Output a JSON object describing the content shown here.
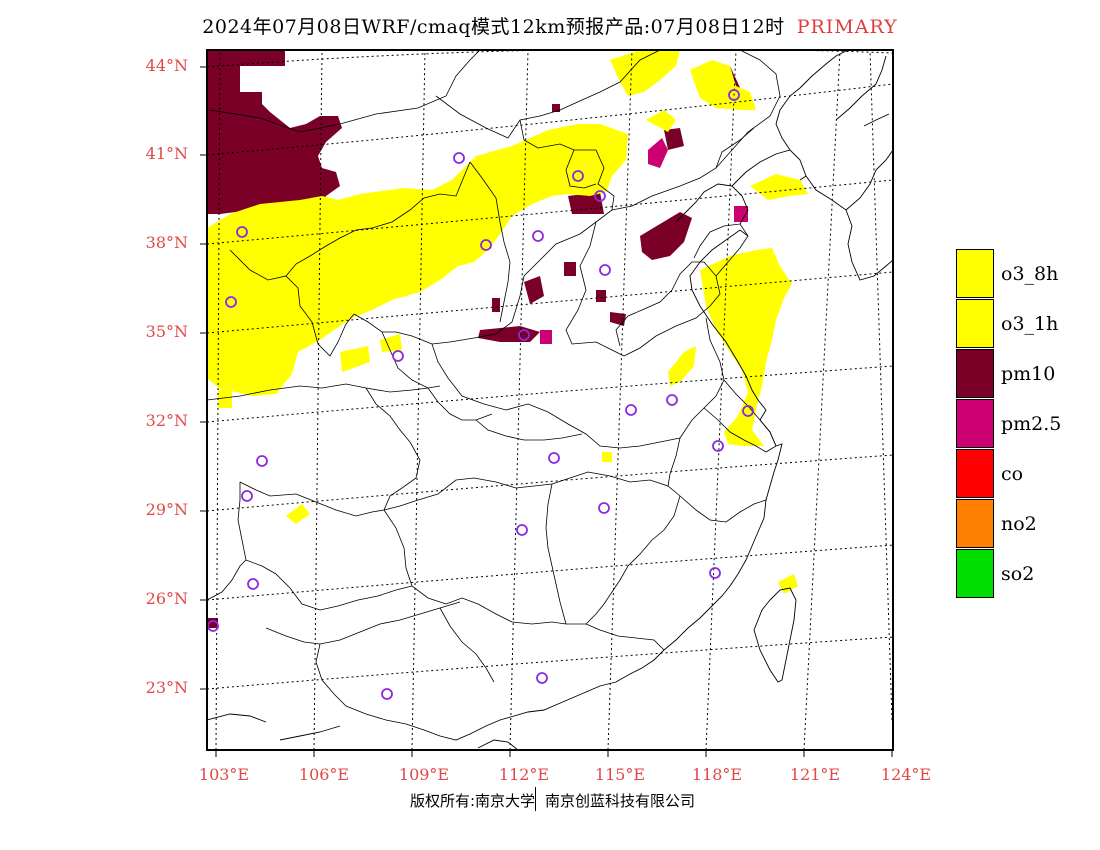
{
  "title": {
    "main": "2024年07月08日WRF/cmaq模式12km预报产品:07月08日12时",
    "tag": "PRIMARY",
    "tag_color": "#e03c3c"
  },
  "axes": {
    "lat_labels": [
      "44°N",
      "41°N",
      "38°N",
      "35°N",
      "32°N",
      "29°N",
      "26°N",
      "23°N"
    ],
    "lon_labels": [
      "103°E",
      "106°E",
      "109°E",
      "112°E",
      "115°E",
      "118°E",
      "121°E",
      "124°E"
    ],
    "label_color": "#e04848"
  },
  "legend": [
    {
      "label": "o3_8h",
      "color": "#ffff00"
    },
    {
      "label": "o3_1h",
      "color": "#ffff00"
    },
    {
      "label": "pm10",
      "color": "#7a0028"
    },
    {
      "label": "pm2.5",
      "color": "#cc0070"
    },
    {
      "label": "co",
      "color": "#ff0000"
    },
    {
      "label": "no2",
      "color": "#ff7f00"
    },
    {
      "label": "so2",
      "color": "#00dd00"
    }
  ],
  "footer": {
    "left": "版权所有:南京大学",
    "right": "南京创蓝科技有限公司"
  },
  "station_marker_color": "#8a2be2"
}
